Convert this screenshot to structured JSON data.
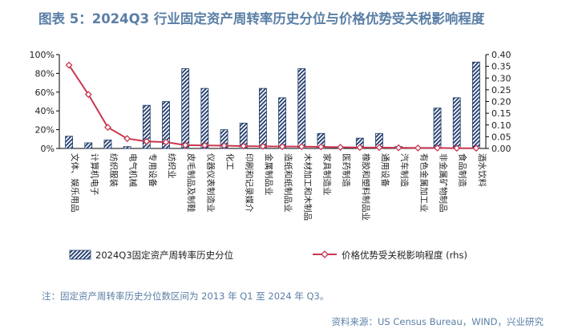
{
  "title": "图表 5：2024Q3 行业固定资产周转率历史分位与价格优势受关税影响程度",
  "note": "注：固定资产周转率历史分位数区间为 2013 年 Q1 至 2024 年 Q3。",
  "source": "资料来源：US Census Bureau，WIND，兴业研究",
  "colors": {
    "bar": "#1f3b6b",
    "line": "#c8374f",
    "title": "#5b7fa6"
  },
  "chart_data": {
    "type": "bar+line",
    "categories": [
      "文体、娱乐用品",
      "计算机电子",
      "纺织服装",
      "电气机械",
      "专用设备",
      "纺织业",
      "皮毛制品及制鞋",
      "仪器仪表制造业",
      "化工",
      "印刷和记录媒介",
      "金属制品业",
      "造纸和纸制品业",
      "木材加工和木制品",
      "家具制造业",
      "医药制造",
      "橡胶和塑料制品业",
      "通用设备",
      "汽车制造",
      "有色金属加工业",
      "非金属矿物制品",
      "食品制造",
      "酒水饮料"
    ],
    "series": [
      {
        "name": "2024Q3固定资产周转率历史分位",
        "type": "bar",
        "axis": "left",
        "values": [
          0.13,
          0.06,
          0.09,
          0.02,
          0.46,
          0.5,
          0.85,
          0.64,
          0.2,
          0.27,
          0.64,
          0.54,
          0.85,
          0.16,
          0.01,
          0.11,
          0.16,
          0.02,
          0.01,
          0.43,
          0.54,
          0.92
        ]
      },
      {
        "name": "价格优势受关税影响程度 (rhs)",
        "type": "line",
        "axis": "right",
        "values": [
          0.355,
          0.23,
          0.09,
          0.042,
          0.03,
          0.027,
          0.014,
          0.013,
          0.012,
          0.01,
          0.009,
          0.008,
          0.008,
          0.007,
          0.005,
          0.004,
          0.004,
          0.003,
          0.002,
          0.002,
          0.001,
          0.001
        ]
      }
    ],
    "yleft": {
      "ticks": [
        "0%",
        "20%",
        "40%",
        "60%",
        "80%",
        "100%"
      ],
      "lim": [
        0,
        1
      ]
    },
    "yright": {
      "ticks": [
        "0.00",
        "0.05",
        "0.10",
        "0.15",
        "0.20",
        "0.25",
        "0.30",
        "0.35",
        "0.40"
      ],
      "lim": [
        0,
        0.4
      ]
    },
    "legend_position": "bottom"
  }
}
